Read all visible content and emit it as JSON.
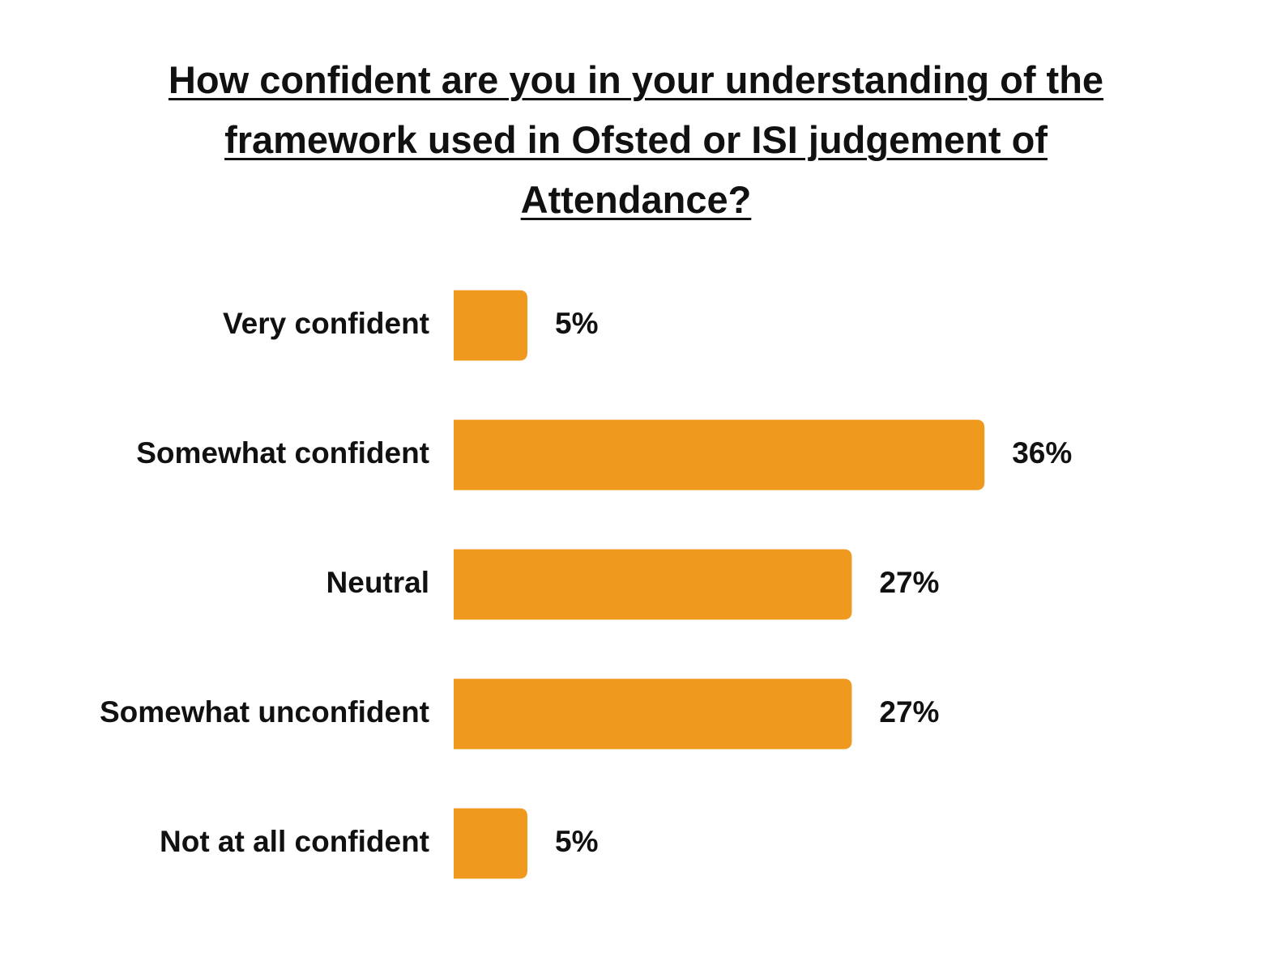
{
  "chart_data": {
    "type": "bar",
    "orientation": "horizontal",
    "title": "How confident are you in your understanding of the framework used in Ofsted or ISI judgement of Attendance?",
    "categories": [
      "Very confident",
      "Somewhat confident",
      "Neutral",
      "Somewhat unconfident",
      "Not at all confident"
    ],
    "values": [
      5,
      36,
      27,
      27,
      5
    ],
    "value_labels": [
      "5%",
      "36%",
      "27%",
      "27%",
      "5%"
    ],
    "color": "#f0991f"
  }
}
